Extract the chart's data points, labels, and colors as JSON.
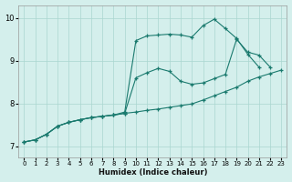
{
  "xlabel": "Humidex (Indice chaleur)",
  "xlim": [
    -0.5,
    23.5
  ],
  "ylim": [
    6.75,
    10.3
  ],
  "xticks": [
    0,
    1,
    2,
    3,
    4,
    5,
    6,
    7,
    8,
    9,
    10,
    11,
    12,
    13,
    14,
    15,
    16,
    17,
    18,
    19,
    20,
    21,
    22,
    23
  ],
  "yticks": [
    7,
    8,
    9,
    10
  ],
  "bg_color": "#d4efec",
  "grid_color": "#aad6d0",
  "line_color": "#1a7a6e",
  "curve1_x": [
    0,
    1,
    2,
    3,
    4,
    5,
    6,
    7,
    8,
    9,
    10,
    11,
    12,
    13,
    14,
    15,
    16,
    17,
    18,
    19,
    20,
    21,
    22,
    23
  ],
  "curve1_y": [
    7.1,
    7.15,
    7.28,
    7.47,
    7.56,
    7.62,
    7.67,
    7.7,
    7.73,
    7.77,
    7.8,
    7.84,
    7.87,
    7.91,
    7.95,
    7.99,
    8.08,
    8.18,
    8.28,
    8.38,
    8.52,
    8.62,
    8.7,
    8.78
  ],
  "curve2_x": [
    0,
    1,
    2,
    3,
    4,
    5,
    6,
    7,
    8,
    9,
    10,
    11,
    12,
    13,
    14,
    15,
    16,
    17,
    18,
    19,
    20,
    21,
    22
  ],
  "curve2_y": [
    7.1,
    7.15,
    7.28,
    7.47,
    7.56,
    7.62,
    7.67,
    7.7,
    7.73,
    7.77,
    8.6,
    8.72,
    8.82,
    8.75,
    8.52,
    8.45,
    8.48,
    8.58,
    8.68,
    9.5,
    9.2,
    9.13,
    8.85
  ],
  "curve3_x": [
    0,
    1,
    2,
    3,
    4,
    5,
    6,
    7,
    8,
    9,
    10,
    11,
    12,
    13,
    14,
    15,
    16,
    17,
    18,
    19,
    20,
    21
  ],
  "curve3_y": [
    7.1,
    7.15,
    7.28,
    7.47,
    7.56,
    7.62,
    7.67,
    7.7,
    7.73,
    7.8,
    9.47,
    9.58,
    9.6,
    9.62,
    9.6,
    9.55,
    9.82,
    9.97,
    9.75,
    9.52,
    9.15,
    8.85
  ]
}
